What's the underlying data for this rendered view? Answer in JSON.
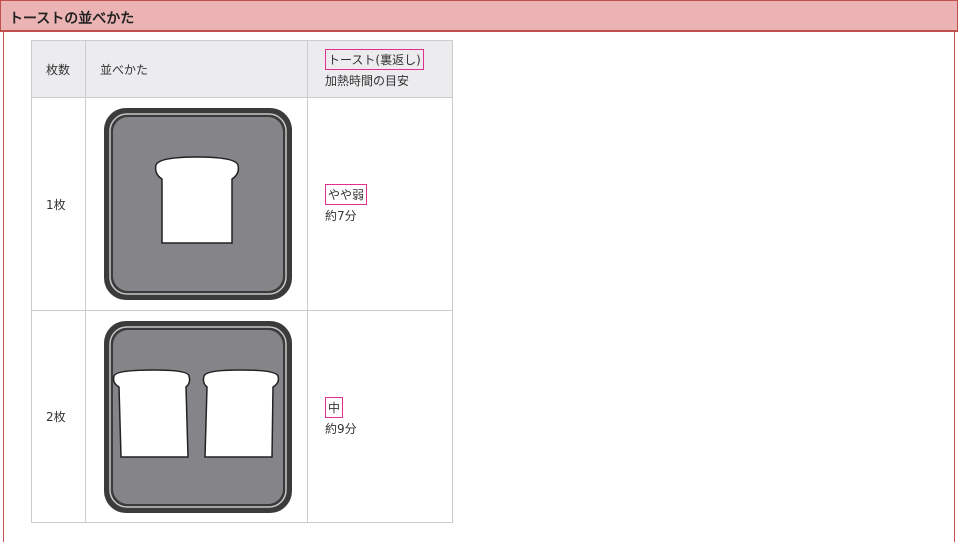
{
  "header": {
    "title": "トーストの並べかた"
  },
  "table": {
    "header": {
      "count": "枚数",
      "layout": "並べかた",
      "setting": "トースト(裏返し)",
      "time": "加熱時間の目安"
    },
    "rows": [
      {
        "count": "1枚",
        "setting": "やや弱",
        "time": "約7分"
      },
      {
        "count": "2枚",
        "setting": "中",
        "time": "約9分"
      }
    ]
  }
}
